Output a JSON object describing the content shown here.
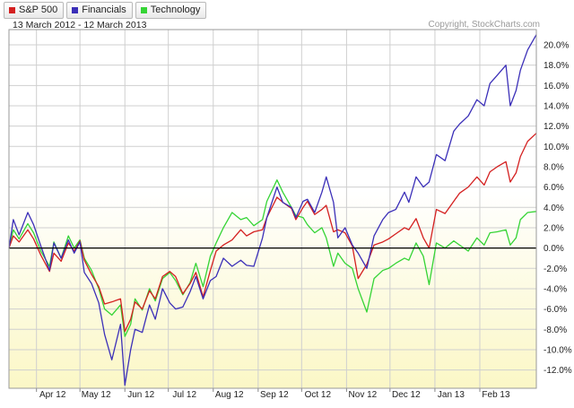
{
  "legend": [
    {
      "label": "S&P 500",
      "color": "#d42020"
    },
    {
      "label": "Financials",
      "color": "#3b2fb8"
    },
    {
      "label": "Technology",
      "color": "#35d435"
    }
  ],
  "subtitle": "13 March 2012 - 12 March 2013",
  "copyright": "Copyright, StockCharts.com",
  "chart_data": {
    "type": "line",
    "xlim": [
      "2012-03-13",
      "2013-03-12"
    ],
    "ylim": [
      -13.8,
      21.5
    ],
    "x_ticks": [
      {
        "label": "Apr 12",
        "date": "2012-04-01"
      },
      {
        "label": "May 12",
        "date": "2012-05-01"
      },
      {
        "label": "Jun 12",
        "date": "2012-06-01"
      },
      {
        "label": "Jul 12",
        "date": "2012-07-01"
      },
      {
        "label": "Aug 12",
        "date": "2012-08-01"
      },
      {
        "label": "Sep 12",
        "date": "2012-09-01"
      },
      {
        "label": "Oct 12",
        "date": "2012-10-01"
      },
      {
        "label": "Nov 12",
        "date": "2012-11-01"
      },
      {
        "label": "Dec 12",
        "date": "2012-12-01"
      },
      {
        "label": "Jan 13",
        "date": "2013-01-01"
      },
      {
        "label": "Feb 13",
        "date": "2013-02-01"
      }
    ],
    "y_ticks": [
      {
        "label": "20.0%",
        "value": 20
      },
      {
        "label": "18.0%",
        "value": 18
      },
      {
        "label": "16.0%",
        "value": 16
      },
      {
        "label": "14.0%",
        "value": 14
      },
      {
        "label": "12.0%",
        "value": 12
      },
      {
        "label": "10.0%",
        "value": 10
      },
      {
        "label": "8.0%",
        "value": 8
      },
      {
        "label": "6.0%",
        "value": 6
      },
      {
        "label": "4.0%",
        "value": 4
      },
      {
        "label": "2.0%",
        "value": 2
      },
      {
        "label": "0.0%",
        "value": 0
      },
      {
        "label": "-2.0%",
        "value": -2
      },
      {
        "label": "-4.0%",
        "value": -4
      },
      {
        "label": "-6.0%",
        "value": -6
      },
      {
        "label": "-8.0%",
        "value": -8
      },
      {
        "label": "-10.0%",
        "value": -10
      },
      {
        "label": "-12.0%",
        "value": -12
      }
    ],
    "grid": true,
    "background": {
      "top": "#ffffff",
      "bottom": "#fbf7c6"
    },
    "series": [
      {
        "name": "S&P 500",
        "color": "#d42020",
        "points": [
          [
            "2012-03-13",
            0
          ],
          [
            "2012-03-16",
            1.2
          ],
          [
            "2012-03-20",
            0.6
          ],
          [
            "2012-03-26",
            1.8
          ],
          [
            "2012-03-30",
            0.9
          ],
          [
            "2012-04-04",
            -0.7
          ],
          [
            "2012-04-10",
            -2.3
          ],
          [
            "2012-04-13",
            -0.5
          ],
          [
            "2012-04-18",
            -1.3
          ],
          [
            "2012-04-23",
            0.5
          ],
          [
            "2012-04-27",
            -0.3
          ],
          [
            "2012-05-01",
            0.7
          ],
          [
            "2012-05-04",
            -1.2
          ],
          [
            "2012-05-09",
            -2.6
          ],
          [
            "2012-05-14",
            -3.8
          ],
          [
            "2012-05-18",
            -5.5
          ],
          [
            "2012-05-23",
            -5.3
          ],
          [
            "2012-05-29",
            -5.0
          ],
          [
            "2012-06-01",
            -8.2
          ],
          [
            "2012-06-05",
            -7.0
          ],
          [
            "2012-06-08",
            -5.3
          ],
          [
            "2012-06-13",
            -6.0
          ],
          [
            "2012-06-18",
            -4.2
          ],
          [
            "2012-06-22",
            -5.0
          ],
          [
            "2012-06-27",
            -2.8
          ],
          [
            "2012-07-02",
            -2.3
          ],
          [
            "2012-07-06",
            -2.8
          ],
          [
            "2012-07-11",
            -4.5
          ],
          [
            "2012-07-16",
            -3.5
          ],
          [
            "2012-07-20",
            -2.4
          ],
          [
            "2012-07-25",
            -4.8
          ],
          [
            "2012-07-30",
            -2.2
          ],
          [
            "2012-08-03",
            -0.3
          ],
          [
            "2012-08-08",
            0.3
          ],
          [
            "2012-08-14",
            0.8
          ],
          [
            "2012-08-20",
            1.8
          ],
          [
            "2012-08-24",
            1.2
          ],
          [
            "2012-08-29",
            1.6
          ],
          [
            "2012-09-04",
            1.8
          ],
          [
            "2012-09-07",
            3.0
          ],
          [
            "2012-09-14",
            5.0
          ],
          [
            "2012-09-18",
            4.5
          ],
          [
            "2012-09-24",
            3.9
          ],
          [
            "2012-09-27",
            2.8
          ],
          [
            "2012-10-02",
            4.0
          ],
          [
            "2012-10-05",
            4.6
          ],
          [
            "2012-10-10",
            3.3
          ],
          [
            "2012-10-15",
            3.8
          ],
          [
            "2012-10-18",
            4.2
          ],
          [
            "2012-10-23",
            1.6
          ],
          [
            "2012-10-26",
            1.8
          ],
          [
            "2012-10-31",
            1.5
          ],
          [
            "2012-11-05",
            0.2
          ],
          [
            "2012-11-09",
            -3.0
          ],
          [
            "2012-11-15",
            -1.6
          ],
          [
            "2012-11-20",
            0.3
          ],
          [
            "2012-11-26",
            0.6
          ],
          [
            "2012-11-30",
            0.9
          ],
          [
            "2012-12-05",
            1.4
          ],
          [
            "2012-12-11",
            2.0
          ],
          [
            "2012-12-14",
            1.8
          ],
          [
            "2012-12-19",
            2.9
          ],
          [
            "2012-12-24",
            1.0
          ],
          [
            "2012-12-28",
            0.0
          ],
          [
            "2013-01-02",
            3.8
          ],
          [
            "2013-01-08",
            3.4
          ],
          [
            "2013-01-14",
            4.6
          ],
          [
            "2013-01-18",
            5.4
          ],
          [
            "2013-01-24",
            6.0
          ],
          [
            "2013-01-30",
            7.0
          ],
          [
            "2013-02-04",
            6.2
          ],
          [
            "2013-02-08",
            7.5
          ],
          [
            "2013-02-13",
            8.0
          ],
          [
            "2013-02-19",
            8.5
          ],
          [
            "2013-02-22",
            6.5
          ],
          [
            "2013-02-26",
            7.4
          ],
          [
            "2013-03-01",
            9.0
          ],
          [
            "2013-03-06",
            10.5
          ],
          [
            "2013-03-12",
            11.3
          ]
        ]
      },
      {
        "name": "Financials",
        "color": "#3b2fb8",
        "points": [
          [
            "2012-03-13",
            0
          ],
          [
            "2012-03-16",
            2.8
          ],
          [
            "2012-03-20",
            1.3
          ],
          [
            "2012-03-26",
            3.5
          ],
          [
            "2012-03-30",
            2.3
          ],
          [
            "2012-04-04",
            0.2
          ],
          [
            "2012-04-10",
            -2.2
          ],
          [
            "2012-04-13",
            0.5
          ],
          [
            "2012-04-18",
            -1.0
          ],
          [
            "2012-04-23",
            0.8
          ],
          [
            "2012-04-27",
            -0.5
          ],
          [
            "2012-05-01",
            0.6
          ],
          [
            "2012-05-04",
            -2.4
          ],
          [
            "2012-05-09",
            -3.5
          ],
          [
            "2012-05-14",
            -5.4
          ],
          [
            "2012-05-18",
            -8.5
          ],
          [
            "2012-05-23",
            -11.0
          ],
          [
            "2012-05-29",
            -7.5
          ],
          [
            "2012-06-01",
            -13.5
          ],
          [
            "2012-06-05",
            -10.0
          ],
          [
            "2012-06-08",
            -8.0
          ],
          [
            "2012-06-13",
            -8.3
          ],
          [
            "2012-06-18",
            -5.6
          ],
          [
            "2012-06-22",
            -7.0
          ],
          [
            "2012-06-27",
            -4.0
          ],
          [
            "2012-07-02",
            -5.4
          ],
          [
            "2012-07-06",
            -6.0
          ],
          [
            "2012-07-11",
            -5.8
          ],
          [
            "2012-07-16",
            -4.3
          ],
          [
            "2012-07-20",
            -2.8
          ],
          [
            "2012-07-25",
            -5.0
          ],
          [
            "2012-07-30",
            -3.2
          ],
          [
            "2012-08-03",
            -2.8
          ],
          [
            "2012-08-08",
            -1.0
          ],
          [
            "2012-08-14",
            -1.8
          ],
          [
            "2012-08-20",
            -1.2
          ],
          [
            "2012-08-24",
            -1.7
          ],
          [
            "2012-08-29",
            -1.8
          ],
          [
            "2012-09-04",
            1.0
          ],
          [
            "2012-09-07",
            3.0
          ],
          [
            "2012-09-14",
            6.0
          ],
          [
            "2012-09-18",
            4.5
          ],
          [
            "2012-09-24",
            4.0
          ],
          [
            "2012-09-27",
            3.0
          ],
          [
            "2012-10-02",
            4.6
          ],
          [
            "2012-10-05",
            4.8
          ],
          [
            "2012-10-10",
            3.5
          ],
          [
            "2012-10-15",
            5.5
          ],
          [
            "2012-10-18",
            7.0
          ],
          [
            "2012-10-23",
            4.5
          ],
          [
            "2012-10-26",
            1.0
          ],
          [
            "2012-10-31",
            2.0
          ],
          [
            "2012-11-05",
            0.3
          ],
          [
            "2012-11-09",
            -0.5
          ],
          [
            "2012-11-15",
            -2.0
          ],
          [
            "2012-11-20",
            1.2
          ],
          [
            "2012-11-26",
            2.8
          ],
          [
            "2012-11-30",
            3.5
          ],
          [
            "2012-12-05",
            3.8
          ],
          [
            "2012-12-11",
            5.5
          ],
          [
            "2012-12-14",
            4.5
          ],
          [
            "2012-12-19",
            7.0
          ],
          [
            "2012-12-24",
            6.0
          ],
          [
            "2012-12-28",
            6.5
          ],
          [
            "2013-01-02",
            9.2
          ],
          [
            "2013-01-08",
            8.6
          ],
          [
            "2013-01-14",
            11.5
          ],
          [
            "2013-01-18",
            12.2
          ],
          [
            "2013-01-24",
            13.0
          ],
          [
            "2013-01-30",
            14.6
          ],
          [
            "2013-02-04",
            14.0
          ],
          [
            "2013-02-08",
            16.2
          ],
          [
            "2013-02-13",
            17.0
          ],
          [
            "2013-02-19",
            18.0
          ],
          [
            "2013-02-22",
            14.0
          ],
          [
            "2013-02-26",
            15.5
          ],
          [
            "2013-03-01",
            17.5
          ],
          [
            "2013-03-06",
            19.5
          ],
          [
            "2013-03-12",
            21.0
          ]
        ]
      },
      {
        "name": "Technology",
        "color": "#35d435",
        "points": [
          [
            "2012-03-13",
            0
          ],
          [
            "2012-03-16",
            1.8
          ],
          [
            "2012-03-20",
            0.9
          ],
          [
            "2012-03-26",
            2.4
          ],
          [
            "2012-03-30",
            1.5
          ],
          [
            "2012-04-04",
            -0.3
          ],
          [
            "2012-04-10",
            -1.8
          ],
          [
            "2012-04-13",
            0.6
          ],
          [
            "2012-04-18",
            -1.0
          ],
          [
            "2012-04-23",
            1.2
          ],
          [
            "2012-04-27",
            0.0
          ],
          [
            "2012-05-01",
            0.8
          ],
          [
            "2012-05-04",
            -1.0
          ],
          [
            "2012-05-09",
            -2.2
          ],
          [
            "2012-05-14",
            -4.0
          ],
          [
            "2012-05-18",
            -6.0
          ],
          [
            "2012-05-23",
            -6.6
          ],
          [
            "2012-05-29",
            -5.6
          ],
          [
            "2012-06-01",
            -8.7
          ],
          [
            "2012-06-05",
            -7.5
          ],
          [
            "2012-06-08",
            -5.0
          ],
          [
            "2012-06-13",
            -6.1
          ],
          [
            "2012-06-18",
            -4.0
          ],
          [
            "2012-06-22",
            -5.2
          ],
          [
            "2012-06-27",
            -3.0
          ],
          [
            "2012-07-02",
            -2.4
          ],
          [
            "2012-07-06",
            -3.2
          ],
          [
            "2012-07-11",
            -4.6
          ],
          [
            "2012-07-16",
            -3.4
          ],
          [
            "2012-07-20",
            -1.5
          ],
          [
            "2012-07-25",
            -3.8
          ],
          [
            "2012-07-30",
            -0.8
          ],
          [
            "2012-08-03",
            0.5
          ],
          [
            "2012-08-08",
            2.0
          ],
          [
            "2012-08-14",
            3.5
          ],
          [
            "2012-08-20",
            2.8
          ],
          [
            "2012-08-24",
            3.0
          ],
          [
            "2012-08-29",
            2.2
          ],
          [
            "2012-09-04",
            2.8
          ],
          [
            "2012-09-07",
            4.6
          ],
          [
            "2012-09-14",
            6.7
          ],
          [
            "2012-09-18",
            5.5
          ],
          [
            "2012-09-24",
            4.0
          ],
          [
            "2012-09-27",
            3.2
          ],
          [
            "2012-10-02",
            3.0
          ],
          [
            "2012-10-05",
            2.3
          ],
          [
            "2012-10-10",
            1.5
          ],
          [
            "2012-10-15",
            2.0
          ],
          [
            "2012-10-18",
            1.0
          ],
          [
            "2012-10-23",
            -1.8
          ],
          [
            "2012-10-26",
            -0.5
          ],
          [
            "2012-10-31",
            -1.5
          ],
          [
            "2012-11-05",
            -2.0
          ],
          [
            "2012-11-09",
            -4.0
          ],
          [
            "2012-11-15",
            -6.3
          ],
          [
            "2012-11-20",
            -3.0
          ],
          [
            "2012-11-26",
            -2.2
          ],
          [
            "2012-11-30",
            -2.0
          ],
          [
            "2012-12-05",
            -1.5
          ],
          [
            "2012-12-11",
            -1.0
          ],
          [
            "2012-12-14",
            -1.2
          ],
          [
            "2012-12-19",
            0.5
          ],
          [
            "2012-12-24",
            -0.8
          ],
          [
            "2012-12-28",
            -3.6
          ],
          [
            "2013-01-02",
            0.5
          ],
          [
            "2013-01-08",
            0.0
          ],
          [
            "2013-01-14",
            0.7
          ],
          [
            "2013-01-18",
            0.3
          ],
          [
            "2013-01-24",
            -0.3
          ],
          [
            "2013-01-30",
            1.0
          ],
          [
            "2013-02-04",
            0.3
          ],
          [
            "2013-02-08",
            1.5
          ],
          [
            "2013-02-13",
            1.6
          ],
          [
            "2013-02-19",
            1.8
          ],
          [
            "2013-02-22",
            0.3
          ],
          [
            "2013-02-26",
            1.0
          ],
          [
            "2013-03-01",
            2.8
          ],
          [
            "2013-03-06",
            3.5
          ],
          [
            "2013-03-12",
            3.6
          ]
        ]
      }
    ]
  }
}
